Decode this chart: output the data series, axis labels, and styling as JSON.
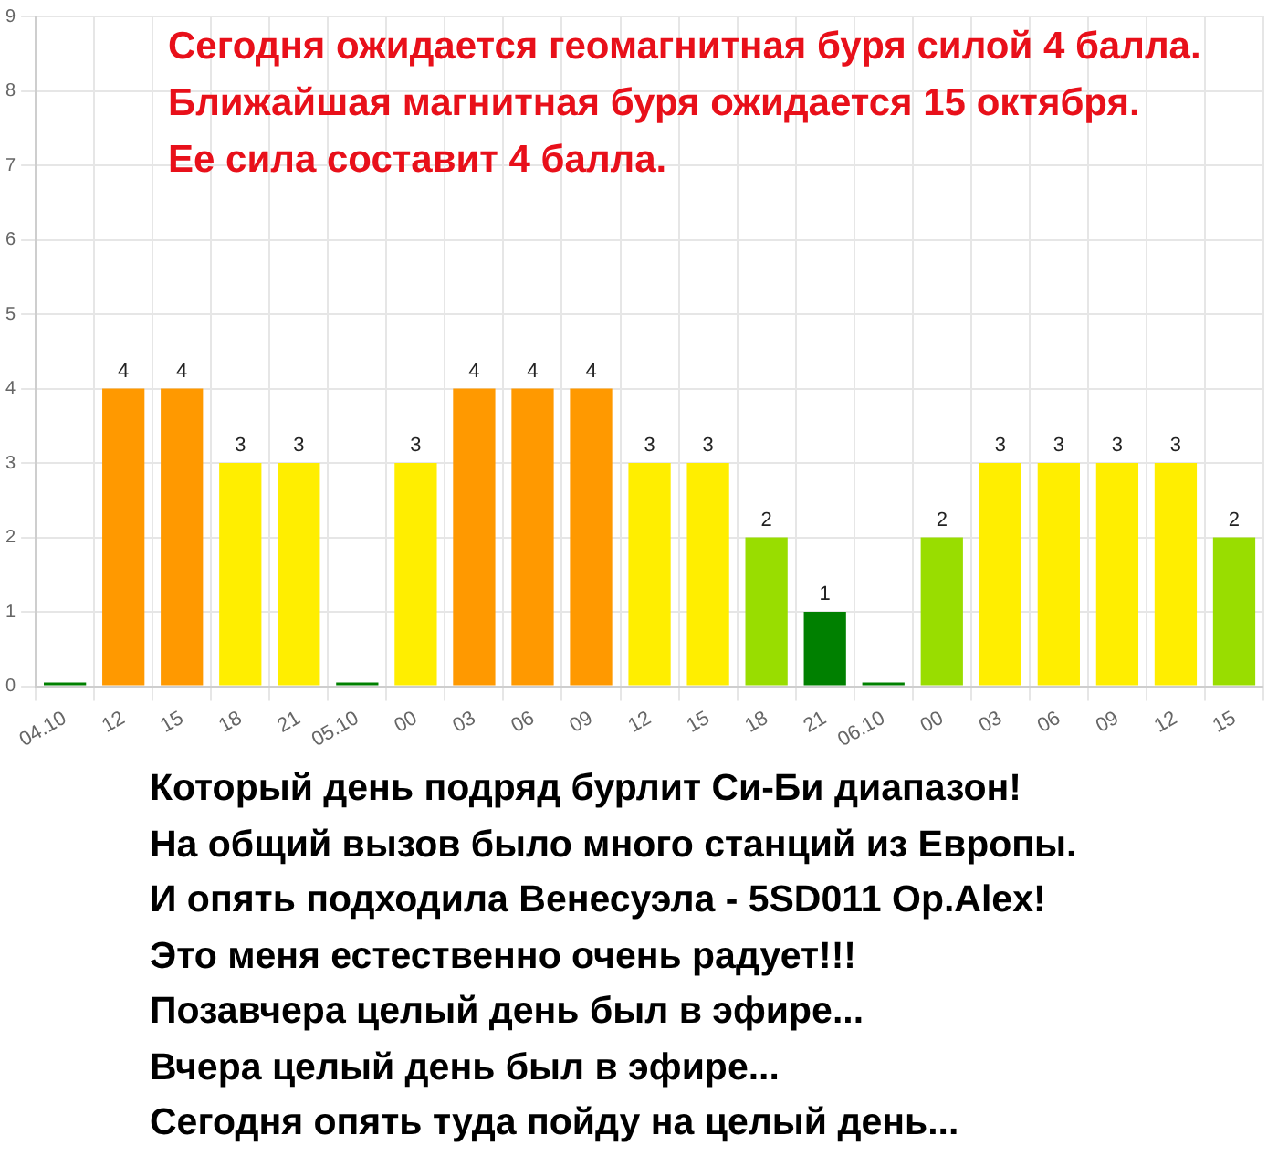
{
  "chart_data": {
    "type": "bar",
    "title": "Сегодня ожидается геомагнитная буря силой 4 балла.\nБлижайшая магнитная буря ожидается 15 октября.\nЕе сила составит 4 балла.",
    "categories": [
      "04.10",
      "12",
      "15",
      "18",
      "21",
      "05.10",
      "00",
      "03",
      "06",
      "09",
      "12",
      "15",
      "18",
      "21",
      "06.10",
      "00",
      "03",
      "06",
      "09",
      "12",
      "15"
    ],
    "values": [
      0,
      4,
      4,
      3,
      3,
      0,
      3,
      4,
      4,
      4,
      3,
      3,
      2,
      1,
      0,
      2,
      3,
      3,
      3,
      3,
      2
    ],
    "value_labels": [
      null,
      "4",
      "4",
      "3",
      "3",
      null,
      "3",
      "4",
      "4",
      "4",
      "3",
      "3",
      "2",
      "1",
      null,
      "2",
      "3",
      "3",
      "3",
      "3",
      "2"
    ],
    "colors": [
      "#008000",
      "#ff9900",
      "#ff9900",
      "#ffee00",
      "#ffee00",
      "#008000",
      "#ffee00",
      "#ff9900",
      "#ff9900",
      "#ff9900",
      "#ffee00",
      "#ffee00",
      "#99dd00",
      "#008000",
      "#008000",
      "#99dd00",
      "#ffee00",
      "#ffee00",
      "#ffee00",
      "#ffee00",
      "#99dd00"
    ],
    "ylim": [
      0,
      9
    ],
    "yticks": [
      0,
      1,
      2,
      3,
      4,
      5,
      6,
      7,
      8,
      9
    ],
    "grid": true,
    "legend": false,
    "annotations": [
      "Который день подряд бурлит Си-Би диапазон!",
      "На общий вызов было много станций из Европы.",
      "И опять подходила Венесуэла - 5SD011 Op.Alex!",
      "Это меня естественно очень радует!!!",
      "Позавчера целый день был в эфире...",
      "Вчера целый день был в эфире...",
      "Сегодня опять туда пойду на целый день..."
    ]
  }
}
